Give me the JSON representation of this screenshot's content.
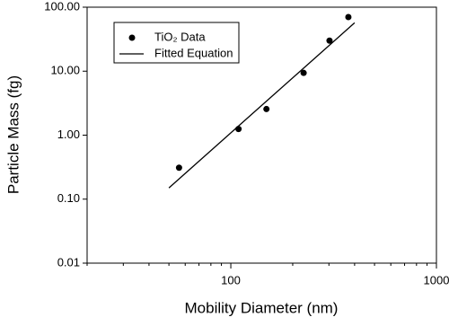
{
  "chart_data": {
    "type": "scatter",
    "xlabel": "Mobility Diameter (nm)",
    "ylabel": "Particle Mass (fg)",
    "xscale": "log",
    "yscale": "log",
    "xlim": [
      20,
      1000
    ],
    "ylim": [
      0.01,
      100
    ],
    "xticks": [
      100,
      1000
    ],
    "xminorticks": [
      20,
      30,
      40,
      50,
      60,
      70,
      80,
      90,
      200,
      300,
      400,
      500,
      600,
      700,
      800,
      900
    ],
    "yticks": [
      0.01,
      {
        "value": 0.1,
        "label": "0.10"
      },
      {
        "value": 1,
        "label": "1.00"
      },
      {
        "value": 10,
        "label": "10.00"
      },
      {
        "value": 100,
        "label": "100.00"
      }
    ],
    "legend": "upper left",
    "series": [
      {
        "name": "TiO₂ Data",
        "mode": "markers",
        "color": "#000000",
        "x": [
          56,
          109,
          149,
          226,
          302,
          373
        ],
        "values": [
          0.31,
          1.25,
          2.56,
          9.4,
          30,
          70
        ]
      },
      {
        "name": "Fitted Equation",
        "mode": "line",
        "color": "#000000",
        "x": [
          50,
          400
        ],
        "values": [
          0.15,
          57
        ]
      }
    ]
  }
}
